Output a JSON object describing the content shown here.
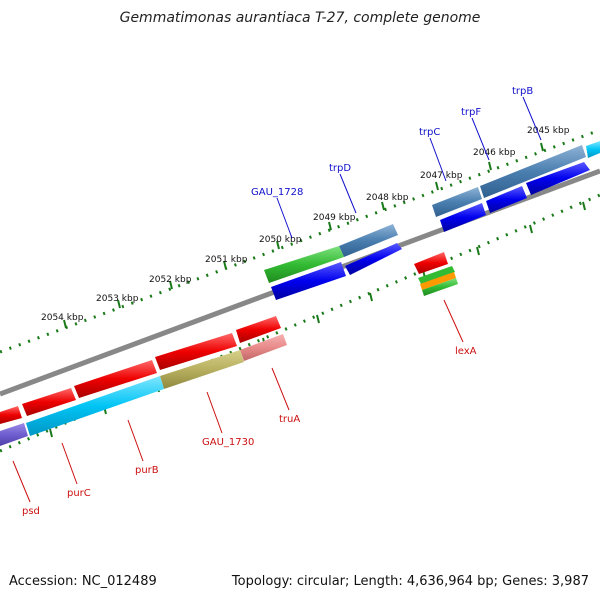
{
  "title": "Gemmatimonas aurantiaca T-27, complete genome",
  "accession": "Accession: NC_012489",
  "summary": "Topology: circular; Length: 4,636,964 bp; Genes: 3,987",
  "scale_labels": [
    "2045 kbp",
    "2046 kbp",
    "2047 kbp",
    "2048 kbp",
    "2049 kbp",
    "2050 kbp",
    "2051 kbp",
    "2052 kbp",
    "2053 kbp",
    "2054 kbp"
  ],
  "gene_labels_forward": [
    "trpB",
    "trpF",
    "trpC",
    "trpD",
    "GAU_1728"
  ],
  "gene_labels_reverse": [
    "lexA",
    "truA",
    "GAU_1730",
    "purB",
    "purC",
    "psd"
  ],
  "colors": {
    "forward_label": "#1010cc",
    "reverse_label": "#cc1010",
    "ruler_tick": "#1a7a1a",
    "backbone": "#888888"
  }
}
